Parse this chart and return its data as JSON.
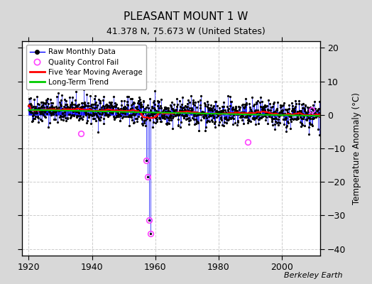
{
  "title": "PLEASANT MOUNT 1 W",
  "subtitle": "41.378 N, 75.673 W (United States)",
  "ylabel": "Temperature Anomaly (°C)",
  "credit": "Berkeley Earth",
  "xlim": [
    1918,
    2012
  ],
  "ylim": [
    -42,
    22
  ],
  "yticks": [
    -40,
    -30,
    -20,
    -10,
    0,
    10,
    20
  ],
  "xticks": [
    1920,
    1940,
    1960,
    1980,
    2000
  ],
  "fig_bg_color": "#d8d8d8",
  "plot_bg_color": "#ffffff",
  "raw_color": "#0000ff",
  "raw_marker_color": "#000000",
  "qc_fail_color": "#ff44ff",
  "five_yr_color": "#ff0000",
  "trend_color": "#00cc00",
  "grid_color": "#cccccc",
  "seed": 42,
  "start_year": 1920,
  "end_year": 2011,
  "qc_fail_points": [
    [
      1936.6,
      -5.5
    ],
    [
      1957.2,
      -13.5
    ],
    [
      1957.7,
      -18.5
    ],
    [
      1958.1,
      -31.5
    ],
    [
      1958.5,
      -35.5
    ],
    [
      1989.3,
      -8.0
    ],
    [
      2009.5,
      1.5
    ]
  ],
  "deep_dip_points": [
    [
      1957.2,
      -13.5
    ],
    [
      1957.7,
      -18.5
    ],
    [
      1958.1,
      -31.5
    ],
    [
      1958.5,
      -35.5
    ]
  ]
}
